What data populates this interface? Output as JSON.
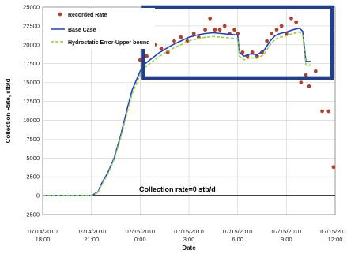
{
  "chart_data": {
    "type": "line",
    "xlabel": "Date",
    "ylabel": "Collection Rate, stb/d",
    "ylim": [
      -2500,
      25000
    ],
    "y_ticks": [
      -2500,
      0,
      2500,
      5000,
      7500,
      10000,
      12500,
      15000,
      17500,
      20000,
      22500,
      25000
    ],
    "x_ticks": [
      {
        "date": "07/14/2010",
        "time": "18:00",
        "hours": 0
      },
      {
        "date": "07/14/2010",
        "time": "21:00",
        "hours": 3
      },
      {
        "date": "07/15/2010",
        "time": "0:00",
        "hours": 6
      },
      {
        "date": "07/15/2010",
        "time": "3:00",
        "hours": 9
      },
      {
        "date": "07/15/2010",
        "time": "6:00",
        "hours": 12
      },
      {
        "date": "07/15/2010",
        "time": "9:00",
        "hours": 15
      },
      {
        "date": "07/15/2010",
        "time": "12:00",
        "hours": 18
      }
    ],
    "grid": true,
    "legend_position": "top-left",
    "annotation": "Collection rate=0 stb/d",
    "highlight_box": {
      "x_range_hours": [
        6.2,
        17.8
      ],
      "y_range": [
        15600,
        25000
      ],
      "color": "#1f3f8f"
    },
    "series": [
      {
        "name": "Recorded Rate",
        "kind": "scatter",
        "color": "#b5412a",
        "x": [
          6.0,
          6.4,
          6.9,
          7.3,
          7.7,
          8.1,
          8.5,
          8.9,
          9.3,
          9.6,
          10.0,
          10.3,
          10.6,
          10.9,
          11.2,
          11.5,
          11.8,
          12.0,
          12.3,
          12.6,
          12.9,
          13.2,
          13.5,
          13.8,
          14.1,
          14.4,
          14.7,
          15.0,
          15.3,
          15.6,
          15.9,
          16.2,
          16.4,
          16.8,
          17.2,
          17.6,
          17.9
        ],
        "y": [
          18000,
          18500,
          20000,
          19500,
          19000,
          20500,
          21000,
          20500,
          21500,
          21000,
          22000,
          23500,
          22000,
          22000,
          22500,
          21500,
          22000,
          21500,
          19000,
          18500,
          19000,
          18500,
          19000,
          20500,
          21500,
          22000,
          22500,
          21500,
          23500,
          23000,
          15000,
          16000,
          14500,
          16500,
          11200,
          11200,
          3800
        ]
      },
      {
        "name": "Base Case",
        "kind": "line",
        "color": "#1f3fd0",
        "x": [
          0,
          1.5,
          3.0,
          3.4,
          3.6,
          4.0,
          4.4,
          4.8,
          5.2,
          5.5,
          5.8,
          6.0,
          6.3,
          6.6,
          6.9,
          7.2,
          7.6,
          8.0,
          8.5,
          9.0,
          9.5,
          10.0,
          10.5,
          11.0,
          11.5,
          12.0,
          12.1,
          12.4,
          12.8,
          13.2,
          13.6,
          14.0,
          14.3,
          14.6,
          15.0,
          15.4,
          15.8,
          16.0,
          16.2,
          16.4,
          16.5
        ],
        "y": [
          0,
          0,
          0,
          500,
          1500,
          3000,
          5000,
          8000,
          11500,
          14000,
          15500,
          16500,
          17500,
          18000,
          18500,
          19000,
          19500,
          20000,
          20500,
          21000,
          21300,
          21500,
          21600,
          21500,
          21400,
          21300,
          19000,
          18500,
          18800,
          18700,
          19200,
          20500,
          21200,
          21500,
          21700,
          22000,
          22200,
          21800,
          17800,
          17800,
          17800
        ]
      },
      {
        "name": "Hydrostatic Error-Upper bound",
        "kind": "dashed-line",
        "color": "#9ad23a",
        "x": [
          0,
          1.5,
          3.0,
          3.4,
          3.6,
          4.0,
          4.4,
          4.8,
          5.2,
          5.5,
          5.8,
          6.0,
          6.3,
          6.6,
          6.9,
          7.2,
          7.6,
          8.0,
          8.5,
          9.0,
          9.5,
          10.0,
          10.5,
          11.0,
          11.5,
          12.0,
          12.1,
          12.4,
          12.8,
          13.2,
          13.6,
          14.0,
          14.3,
          14.6,
          15.0,
          15.4,
          15.8,
          16.0,
          16.2,
          16.4,
          16.5
        ],
        "y": [
          0,
          0,
          0,
          400,
          1300,
          2800,
          4800,
          7700,
          11000,
          13500,
          15000,
          16000,
          17000,
          17500,
          18000,
          18500,
          19000,
          19500,
          20000,
          20500,
          20800,
          21000,
          21100,
          21000,
          20900,
          20800,
          18500,
          18000,
          18300,
          18200,
          18700,
          20000,
          20700,
          21000,
          21200,
          21500,
          21700,
          21300,
          17300,
          17300,
          17300
        ]
      }
    ]
  }
}
